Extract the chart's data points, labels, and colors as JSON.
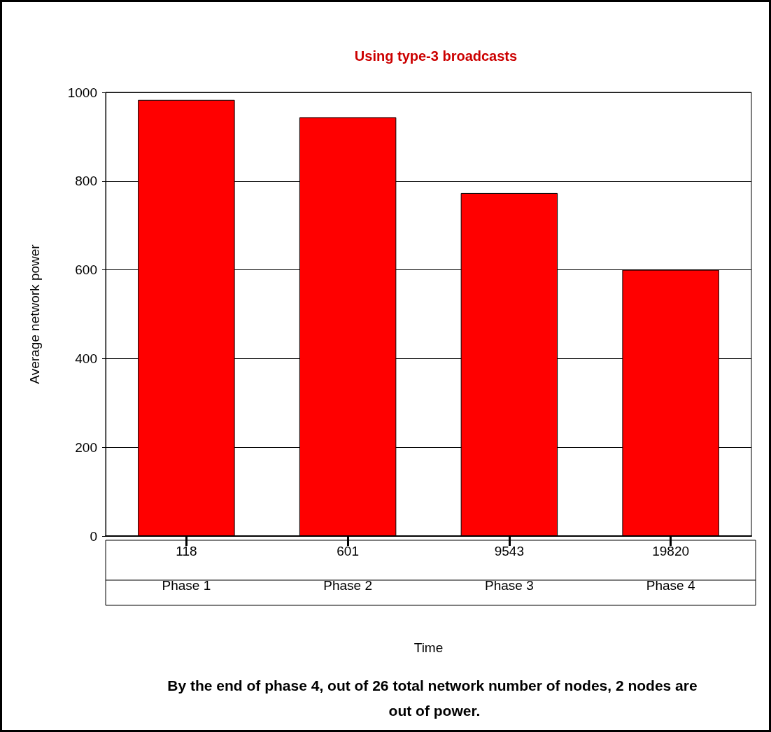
{
  "chart_data": {
    "type": "bar",
    "title": "Using type-3 broadcasts",
    "xlabel": "Time",
    "ylabel": "Average network power",
    "categories": [
      "Phase 1",
      "Phase 2",
      "Phase 3",
      "Phase 4"
    ],
    "values": [
      983,
      944,
      773,
      600
    ],
    "color": "#ff0000",
    "ylim": [
      0,
      1000
    ],
    "yticks": [
      0,
      200,
      400,
      600,
      800,
      1000
    ],
    "grid": "y",
    "annotations": [
      "118",
      "601",
      "9543",
      "19820",
      "By the end of phase 4, out of 26 total network number of nodes, 2 nodes are out of power."
    ]
  }
}
